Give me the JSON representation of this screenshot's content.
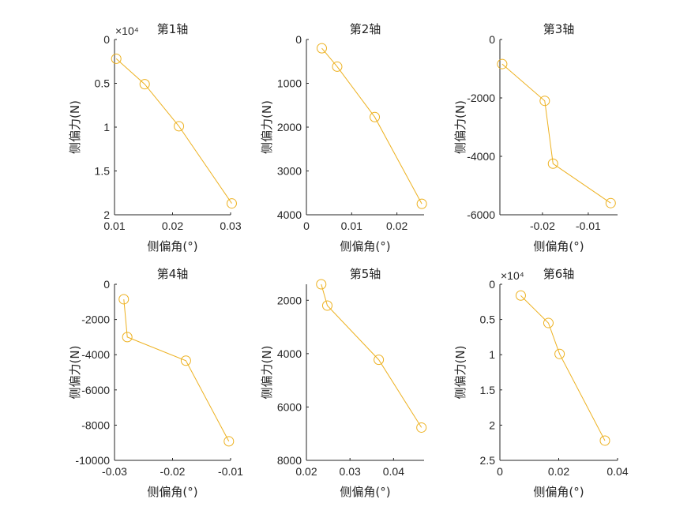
{
  "chart_data": [
    {
      "type": "line",
      "title": "第1轴",
      "xlabel": "侧偏角(°)",
      "ylabel": "侧偏力(N)",
      "y_exponent": "×10⁴",
      "x_ticks": [
        "0.01",
        "0.02",
        "0.03"
      ],
      "y_ticks": [
        "0",
        "0.5",
        "1",
        "1.5",
        "2"
      ],
      "xlim": [
        0.01,
        0.03
      ],
      "ylim": [
        0,
        2
      ],
      "y_reversed": true,
      "x": [
        0.0103,
        0.0152,
        0.0211,
        0.0302
      ],
      "y": [
        0.22,
        0.51,
        0.99,
        1.87
      ],
      "color": "#EDB120"
    },
    {
      "type": "line",
      "title": "第2轴",
      "xlabel": "侧偏角(°)",
      "ylabel": "侧偏力(N)",
      "y_exponent": "",
      "x_ticks": [
        "0",
        "0.01",
        "0.02"
      ],
      "y_ticks": [
        "0",
        "1000",
        "2000",
        "3000",
        "4000"
      ],
      "xlim": [
        0,
        0.026
      ],
      "ylim": [
        0,
        4000
      ],
      "y_reversed": true,
      "x": [
        0.0034,
        0.0068,
        0.0151,
        0.0255
      ],
      "y": [
        200,
        620,
        1770,
        3750
      ],
      "color": "#EDB120"
    },
    {
      "type": "line",
      "title": "第3轴",
      "xlabel": "侧偏角(°)",
      "ylabel": "侧偏力(N)",
      "y_exponent": "",
      "x_ticks": [
        "-0.02",
        "-0.01"
      ],
      "y_ticks": [
        "0",
        "-2000",
        "-4000",
        "-6000"
      ],
      "xlim": [
        -0.0293,
        -0.0036
      ],
      "ylim": [
        0,
        -6000
      ],
      "y_reversed": false,
      "x": [
        -0.0288,
        -0.0195,
        -0.0177,
        -0.0051
      ],
      "y": [
        -840,
        -2100,
        -4250,
        -5600
      ],
      "color": "#EDB120"
    },
    {
      "type": "line",
      "title": "第4轴",
      "xlabel": "侧偏角(°)",
      "ylabel": "侧偏力(N)",
      "y_exponent": "",
      "x_ticks": [
        "-0.03",
        "-0.02",
        "-0.01"
      ],
      "y_ticks": [
        "0",
        "-2000",
        "-4000",
        "-6000",
        "-8000",
        "-10000"
      ],
      "xlim": [
        -0.03,
        -0.01
      ],
      "ylim": [
        0,
        -10000
      ],
      "y_reversed": false,
      "x": [
        -0.0284,
        -0.0278,
        -0.0177,
        -0.0103
      ],
      "y": [
        -850,
        -3000,
        -4340,
        -8920
      ],
      "color": "#EDB120"
    },
    {
      "type": "line",
      "title": "第5轴",
      "xlabel": "侧偏角(°)",
      "ylabel": "侧偏力(N)",
      "y_exponent": "",
      "x_ticks": [
        "0.02",
        "0.03",
        "0.04"
      ],
      "y_ticks": [
        "2000",
        "4000",
        "6000",
        "8000"
      ],
      "xlim": [
        0.02,
        0.047
      ],
      "ylim": [
        1400,
        8000
      ],
      "y_reversed": true,
      "x": [
        0.0234,
        0.0248,
        0.0366,
        0.0464
      ],
      "y": [
        1400,
        2200,
        4230,
        6770
      ],
      "color": "#EDB120"
    },
    {
      "type": "line",
      "title": "第6轴",
      "xlabel": "侧偏角(°)",
      "ylabel": "侧偏力(N)",
      "y_exponent": "×10⁴",
      "x_ticks": [
        "0",
        "0.02",
        "0.04"
      ],
      "y_ticks": [
        "0",
        "0.5",
        "1",
        "1.5",
        "2",
        "2.5"
      ],
      "xlim": [
        0,
        0.04
      ],
      "ylim": [
        0,
        2.5
      ],
      "y_reversed": true,
      "x": [
        0.0071,
        0.0165,
        0.0203,
        0.0357
      ],
      "y": [
        0.16,
        0.55,
        0.99,
        2.22
      ],
      "color": "#EDB120"
    }
  ]
}
